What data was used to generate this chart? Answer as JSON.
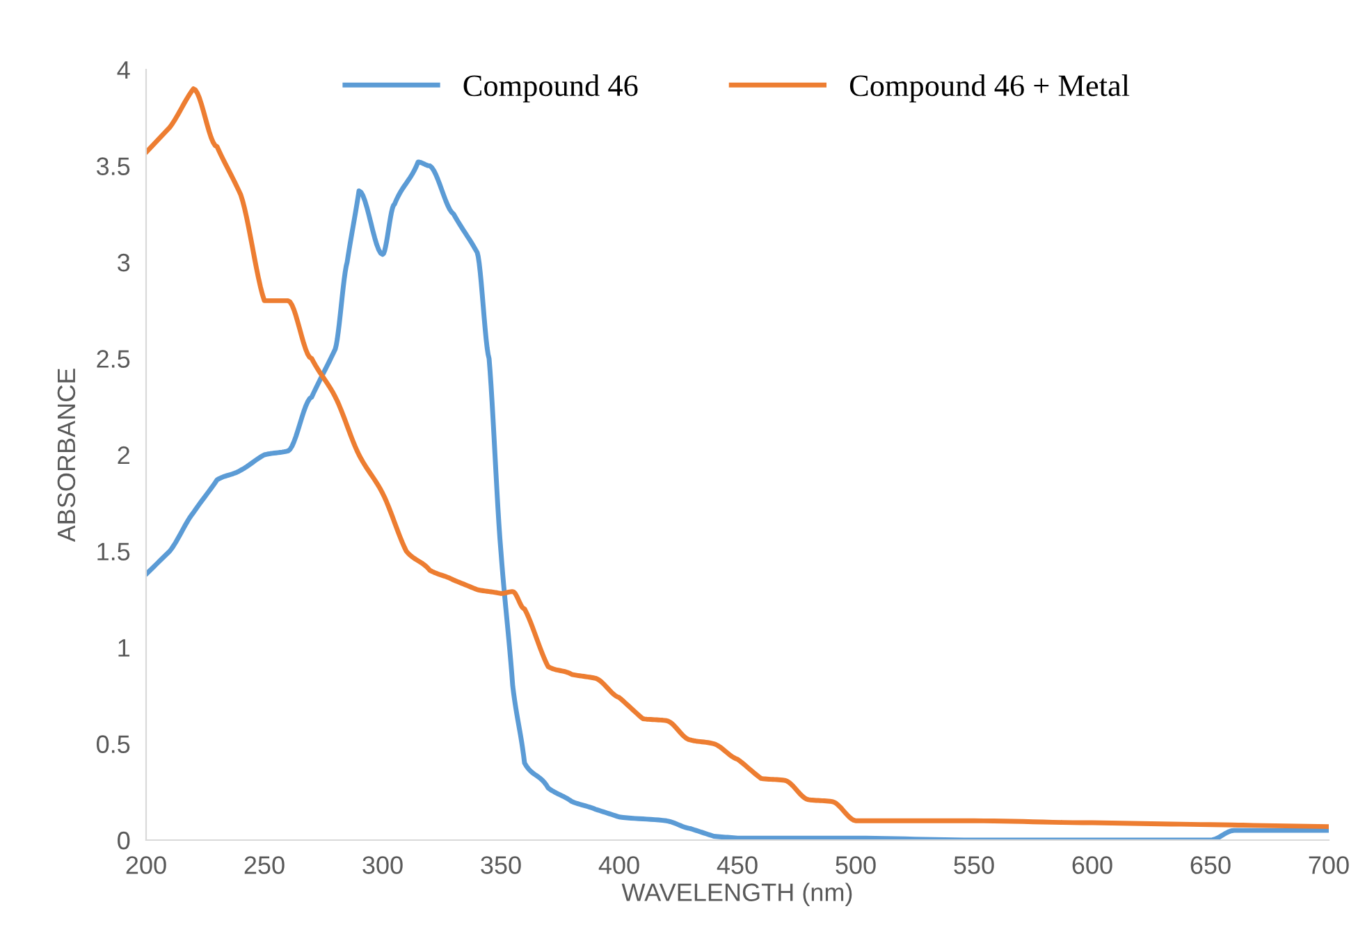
{
  "chart_data": {
    "type": "line",
    "xlabel": "WAVELENGTH (nm)",
    "ylabel": "ABSORBANCE",
    "xlim": [
      200,
      700
    ],
    "xticks": [
      200,
      250,
      300,
      350,
      400,
      450,
      500,
      550,
      600,
      650,
      700
    ],
    "ylim": [
      0,
      4
    ],
    "yticks": [
      0,
      0.5,
      1,
      1.5,
      2,
      2.5,
      3,
      3.5,
      4
    ],
    "grid": false,
    "legend": "top",
    "marker": "none",
    "line_style": "solid",
    "series": [
      {
        "name": "Compound 46",
        "color": "#5b9bd5",
        "x": [
          200,
          210,
          220,
          230,
          240,
          250,
          260,
          270,
          280,
          285,
          290,
          300,
          305,
          315,
          320,
          330,
          340,
          345,
          350,
          355,
          360,
          370,
          380,
          390,
          400,
          420,
          430,
          440,
          450,
          500,
          550,
          600,
          650,
          660,
          700
        ],
        "values": [
          1.38,
          1.5,
          1.7,
          1.87,
          1.92,
          2.0,
          2.02,
          2.3,
          2.55,
          3.0,
          3.37,
          3.04,
          3.3,
          3.52,
          3.5,
          3.25,
          3.05,
          2.5,
          1.5,
          0.8,
          0.4,
          0.27,
          0.2,
          0.16,
          0.12,
          0.1,
          0.06,
          0.02,
          0.01,
          0.01,
          0.0,
          0.0,
          0.0,
          0.05,
          0.05
        ]
      },
      {
        "name": "Compound 46 + Metal",
        "color": "#ed7d31",
        "x": [
          200,
          210,
          220,
          230,
          240,
          250,
          260,
          270,
          280,
          290,
          300,
          310,
          320,
          330,
          340,
          350,
          355,
          360,
          370,
          380,
          390,
          400,
          410,
          420,
          430,
          440,
          450,
          460,
          470,
          480,
          490,
          500,
          510,
          550,
          600,
          650,
          700
        ],
        "values": [
          3.57,
          3.7,
          3.9,
          3.6,
          3.35,
          2.8,
          2.8,
          2.5,
          2.3,
          2.0,
          1.8,
          1.5,
          1.4,
          1.35,
          1.3,
          1.28,
          1.29,
          1.2,
          0.9,
          0.86,
          0.84,
          0.74,
          0.63,
          0.62,
          0.52,
          0.5,
          0.42,
          0.32,
          0.31,
          0.21,
          0.2,
          0.1,
          0.1,
          0.1,
          0.09,
          0.08,
          0.07
        ]
      }
    ]
  }
}
